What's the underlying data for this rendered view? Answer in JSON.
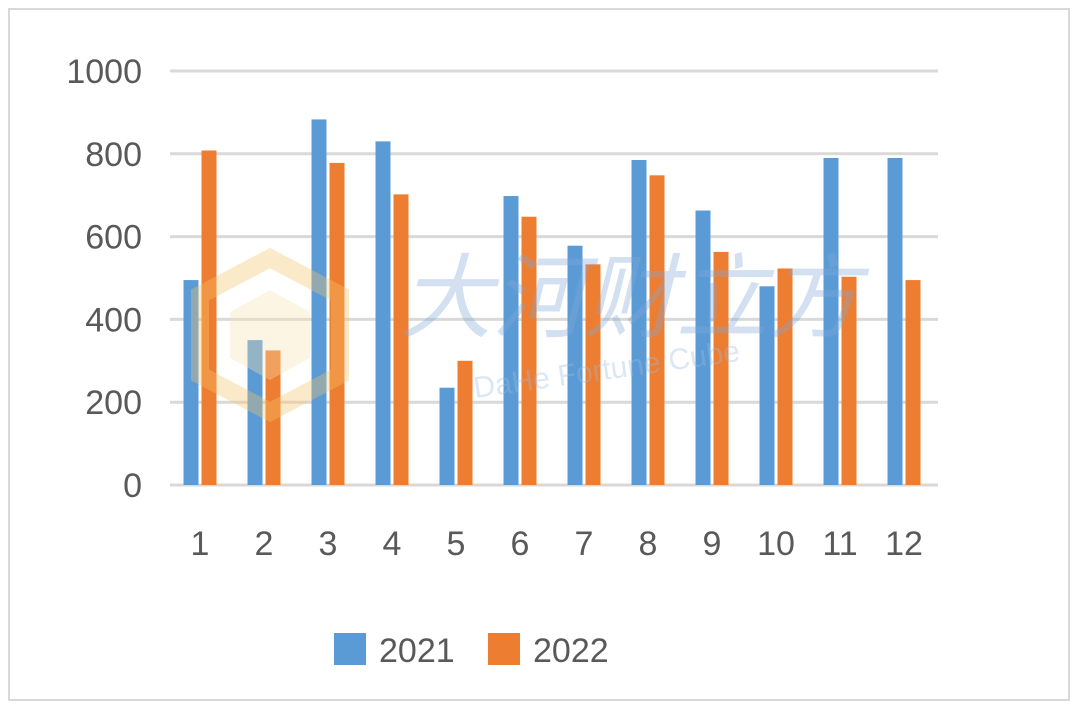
{
  "chart_data": {
    "type": "bar",
    "categories": [
      "1",
      "2",
      "3",
      "4",
      "5",
      "6",
      "7",
      "8",
      "9",
      "10",
      "11",
      "12"
    ],
    "series": [
      {
        "name": "2021",
        "color": "#5b9bd5",
        "values": [
          495,
          350,
          883,
          830,
          235,
          698,
          578,
          785,
          663,
          480,
          790,
          790
        ]
      },
      {
        "name": "2022",
        "color": "#ed7d31",
        "values": [
          808,
          325,
          778,
          702,
          300,
          648,
          533,
          748,
          563,
          523,
          503,
          495
        ]
      }
    ],
    "yticks": [
      "0",
      "200",
      "400",
      "600",
      "800",
      "1000"
    ],
    "ylim": [
      0,
      1000
    ],
    "grid": true,
    "legend_position": "bottom"
  },
  "watermark": {
    "chinese": "大河财立方",
    "english": "DaHe Fortune Cube"
  }
}
